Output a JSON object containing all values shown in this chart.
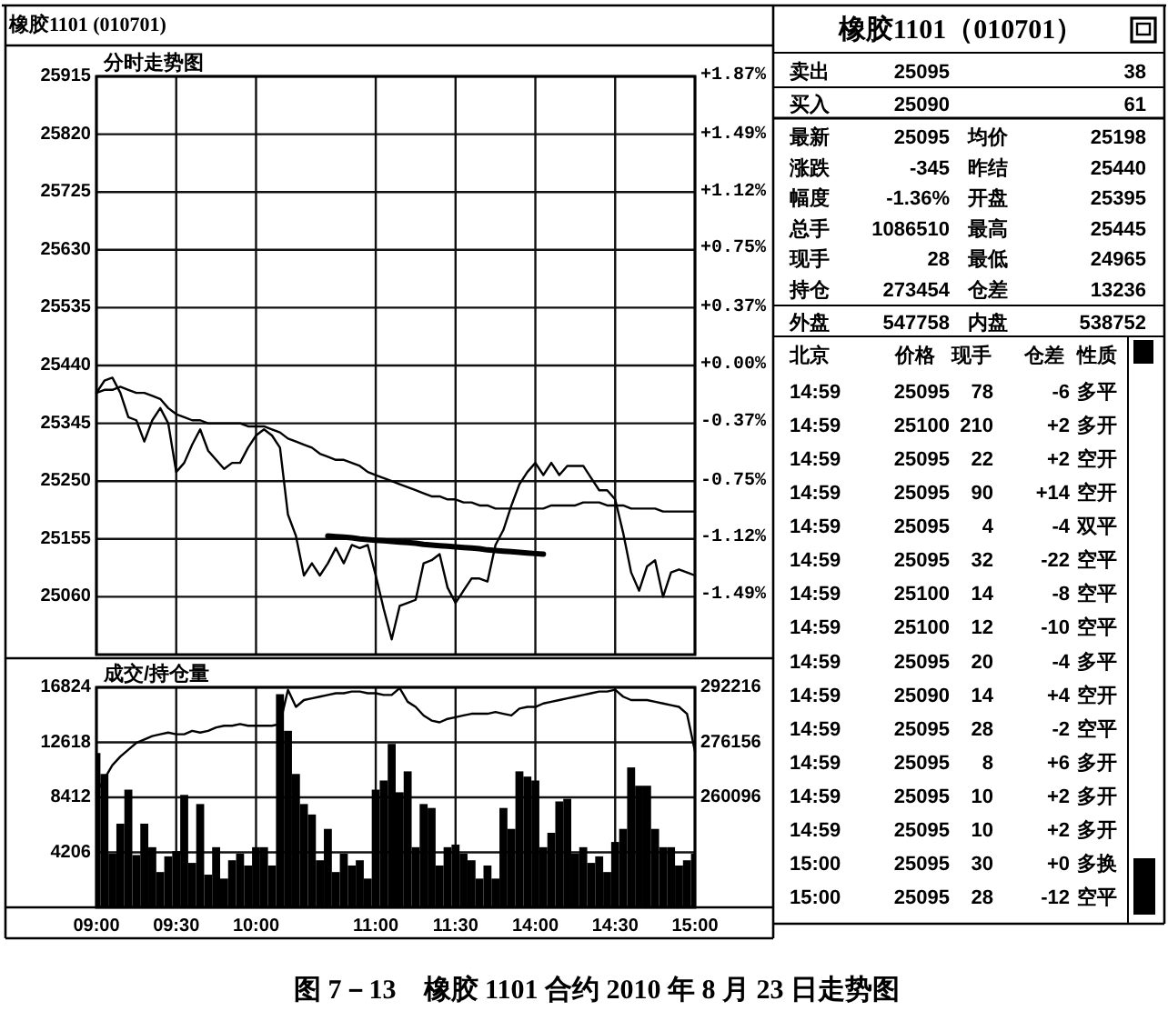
{
  "chart_data": [
    {
      "type": "line",
      "title": "分时走势图",
      "annotations": [
        "橡胶1101 (010701)",
        "图 7－13　橡胶 1101 合约 2010 年 8 月 23 日走势图"
      ],
      "categories": [
        null,
        null,
        null,
        null,
        null,
        null,
        null,
        null,
        null,
        null,
        null,
        null,
        null,
        null,
        null,
        null,
        null,
        null,
        null,
        null,
        null,
        null,
        null,
        null,
        null,
        null,
        null,
        null,
        null,
        null,
        null,
        null,
        null,
        null,
        null,
        null,
        null,
        null,
        null,
        null,
        null,
        null,
        null,
        null,
        null,
        null,
        null,
        null,
        null,
        null,
        null,
        null,
        null,
        null,
        null,
        null,
        null,
        null,
        null,
        null,
        null,
        null,
        null,
        null,
        null,
        null,
        null,
        null,
        null,
        null,
        null,
        null,
        null,
        null,
        null,
        null
      ],
      "tick_labels": "y",
      "ylim": [
        24965,
        25915
      ],
      "yticks": [
        25060,
        25155,
        25250,
        25345,
        25440,
        25535,
        25630,
        25725,
        25820,
        25915
      ],
      "y2lim": [
        -1.87,
        1.87
      ],
      "y2ticks": [
        {
          "value": 1.87,
          "label": "+1.87%"
        },
        {
          "value": 1.49,
          "label": "+1.49%"
        },
        {
          "value": 1.12,
          "label": "+1.12%"
        },
        {
          "value": 0.75,
          "label": "+0.75%"
        },
        {
          "value": 0.37,
          "label": "+0.37%"
        },
        {
          "value": 0,
          "label": "+0.00%"
        },
        {
          "value": -0.37,
          "label": "-0.37%"
        },
        {
          "value": -0.75,
          "label": "-0.75%"
        },
        {
          "value": -1.12,
          "label": "-1.12%"
        },
        {
          "value": -1.49,
          "label": "-1.49%"
        }
      ],
      "grid": true,
      "series": [
        {
          "color": "#000000",
          "values": [
            25395,
            25415,
            25420,
            25395,
            25355,
            25350,
            25315,
            25350,
            25370,
            25345,
            25265,
            25280,
            25310,
            25335,
            25300,
            25285,
            25270,
            25280,
            25280,
            25305,
            25325,
            25335,
            25325,
            25305,
            25195,
            25160,
            25095,
            25115,
            25095,
            25115,
            25140,
            25115,
            25145,
            25140,
            25145,
            25095,
            25040,
            24990,
            25045,
            25050,
            25055,
            25115,
            25120,
            25130,
            25075,
            25050,
            25070,
            25090,
            25090,
            25085,
            25145,
            25170,
            25210,
            25245,
            25265,
            25280,
            25260,
            25280,
            25260,
            25275,
            25275,
            25275,
            25255,
            25235,
            25235,
            25220,
            25165,
            25100,
            25070,
            25110,
            25120,
            25060,
            25100,
            25105,
            25100,
            25095
          ]
        },
        {
          "color": "#000000",
          "values": [
            25395,
            25400,
            25400,
            25405,
            25400,
            25395,
            25395,
            25390,
            25385,
            25370,
            25360,
            25355,
            25350,
            25350,
            25345,
            25345,
            25345,
            25345,
            25345,
            25340,
            25340,
            25340,
            25335,
            25330,
            25320,
            25315,
            25310,
            25305,
            25295,
            25290,
            25285,
            25285,
            25280,
            25275,
            25265,
            25260,
            25255,
            25250,
            25245,
            25240,
            25235,
            25230,
            25225,
            25225,
            25220,
            25220,
            25215,
            25215,
            25210,
            25210,
            25205,
            25205,
            25205,
            25205,
            25205,
            25205,
            25205,
            25210,
            25210,
            25210,
            25210,
            25215,
            25215,
            25215,
            25210,
            25210,
            25210,
            25205,
            25205,
            25205,
            25205,
            25200,
            25200,
            25200,
            25200,
            25200
          ]
        },
        {
          "type": "line",
          "color": "#000000",
          "values": [
            null,
            null,
            null,
            null,
            null,
            null,
            null,
            null,
            null,
            null,
            null,
            null,
            null,
            null,
            null,
            null,
            null,
            null,
            null,
            null,
            null,
            null,
            null,
            null,
            null,
            null,
            null,
            null,
            null,
            25160,
            25159,
            25158,
            25157,
            25155,
            25154,
            25153,
            25152,
            25151,
            25150,
            25149,
            25148,
            25146,
            25145,
            25144,
            25143,
            25142,
            25141,
            25140,
            25139,
            25137,
            25136,
            25135,
            25134,
            25133,
            25132,
            25131,
            25130,
            null,
            null,
            null,
            null,
            null,
            null,
            null,
            null,
            null,
            null,
            null,
            null,
            null,
            null,
            null,
            null,
            null,
            null,
            null
          ]
        }
      ]
    },
    {
      "type": "bar",
      "title": "成交/持仓量",
      "categories": [
        "09:00",
        null,
        null,
        null,
        null,
        null,
        null,
        null,
        null,
        null,
        "09:30",
        null,
        null,
        null,
        null,
        null,
        null,
        null,
        null,
        null,
        "10:00",
        null,
        null,
        null,
        null,
        null,
        null,
        null,
        null,
        null,
        null,
        null,
        null,
        null,
        null,
        "11:00",
        null,
        null,
        null,
        null,
        null,
        null,
        null,
        null,
        null,
        "11:30",
        null,
        null,
        null,
        null,
        null,
        null,
        null,
        null,
        null,
        "14:00",
        null,
        null,
        null,
        null,
        null,
        null,
        null,
        null,
        null,
        "14:30",
        null,
        null,
        null,
        null,
        null,
        null,
        null,
        null,
        null,
        "15:00"
      ],
      "ylim": [
        0,
        16824
      ],
      "yticks": [
        4206,
        8412,
        12618,
        16824
      ],
      "y2lim": [
        227976,
        292216
      ],
      "y2ticks": [
        260096,
        276156,
        292216
      ],
      "grid": true,
      "series": [
        {
          "color": "#000000",
          "values": [
            11800,
            10200,
            4100,
            6400,
            9000,
            4000,
            6400,
            4600,
            2700,
            3900,
            4300,
            8600,
            3400,
            7900,
            2500,
            4600,
            2200,
            3600,
            4100,
            3200,
            4600,
            4600,
            3200,
            16300,
            13500,
            10200,
            7900,
            7100,
            3600,
            6000,
            2700,
            4100,
            3200,
            3600,
            2200,
            9000,
            9700,
            12500,
            8800,
            10400,
            4600,
            7900,
            7600,
            3200,
            4600,
            4800,
            4100,
            3600,
            2200,
            3200,
            2200,
            7600,
            6000,
            10400,
            10000,
            9700,
            4600,
            5700,
            8100,
            8300,
            4100,
            4600,
            3400,
            3900,
            2700,
            5000,
            6000,
            10700,
            9300,
            9300,
            6000,
            4600,
            4600,
            3200,
            3600,
            4100
          ]
        },
        {
          "type": "line",
          "axis": "y2",
          "color": "#000000",
          "values": [
            261500,
            265500,
            269500,
            272000,
            274000,
            276000,
            277000,
            278000,
            278500,
            279000,
            278500,
            278500,
            279500,
            279000,
            279500,
            280500,
            281000,
            281000,
            281500,
            281000,
            281000,
            281000,
            281000,
            281500,
            291500,
            286500,
            288500,
            289000,
            289500,
            290000,
            290500,
            290500,
            291000,
            291000,
            290500,
            290500,
            290000,
            290000,
            292000,
            288000,
            286500,
            284000,
            282500,
            282000,
            283000,
            283500,
            284000,
            284500,
            284500,
            284500,
            285000,
            284500,
            284000,
            286000,
            286500,
            286500,
            287500,
            288000,
            288500,
            289000,
            289500,
            290000,
            290500,
            291000,
            291000,
            291500,
            289500,
            288500,
            288500,
            288500,
            288000,
            287500,
            287000,
            286500,
            284500,
            273500
          ]
        }
      ]
    },
    {
      "type": "other",
      "title": "橡胶1101（010701）",
      "annotations": [
        "卖出",
        "25095",
        "38",
        "买入",
        "25090",
        "61",
        "最新",
        "25095",
        "均价",
        "25198",
        "涨跌",
        "-345",
        "昨结",
        "25440",
        "幅度",
        "-1.36%",
        "开盘",
        "25395",
        "总手",
        "1086510",
        "最高",
        "25445",
        "现手",
        "28",
        "最低",
        "24965",
        "持仓",
        "273454",
        "仓差",
        "13236",
        "外盘",
        "547758",
        "内盘",
        "538752",
        "北京",
        "价格",
        "现手",
        "仓差",
        "性质",
        "14:59",
        "25095",
        "78",
        "-6",
        "多平",
        "14:59",
        "25100",
        "210",
        "+2",
        "多开",
        "14:59",
        "25095",
        "22",
        "+2",
        "空开",
        "14:59",
        "25095",
        "90",
        "+14",
        "空开",
        "14:59",
        "25095",
        "4",
        "-4",
        "双平",
        "14:59",
        "25095",
        "32",
        "-22",
        "空平",
        "14:59",
        "25100",
        "14",
        "-8",
        "空平",
        "14:59",
        "25100",
        "12",
        "-10",
        "空平",
        "14:59",
        "25095",
        "20",
        "-4",
        "多平",
        "14:59",
        "25090",
        "14",
        "+4",
        "空开",
        "14:59",
        "25095",
        "28",
        "-2",
        "空平",
        "14:59",
        "25095",
        "8",
        "+6",
        "多开",
        "14:59",
        "25095",
        "10",
        "+2",
        "多开",
        "14:59",
        "25095",
        "10",
        "+2",
        "多开",
        "15:00",
        "25095",
        "30",
        "+0",
        "多换",
        "15:00",
        "25095",
        "28",
        "-12",
        "空平"
      ]
    }
  ]
}
